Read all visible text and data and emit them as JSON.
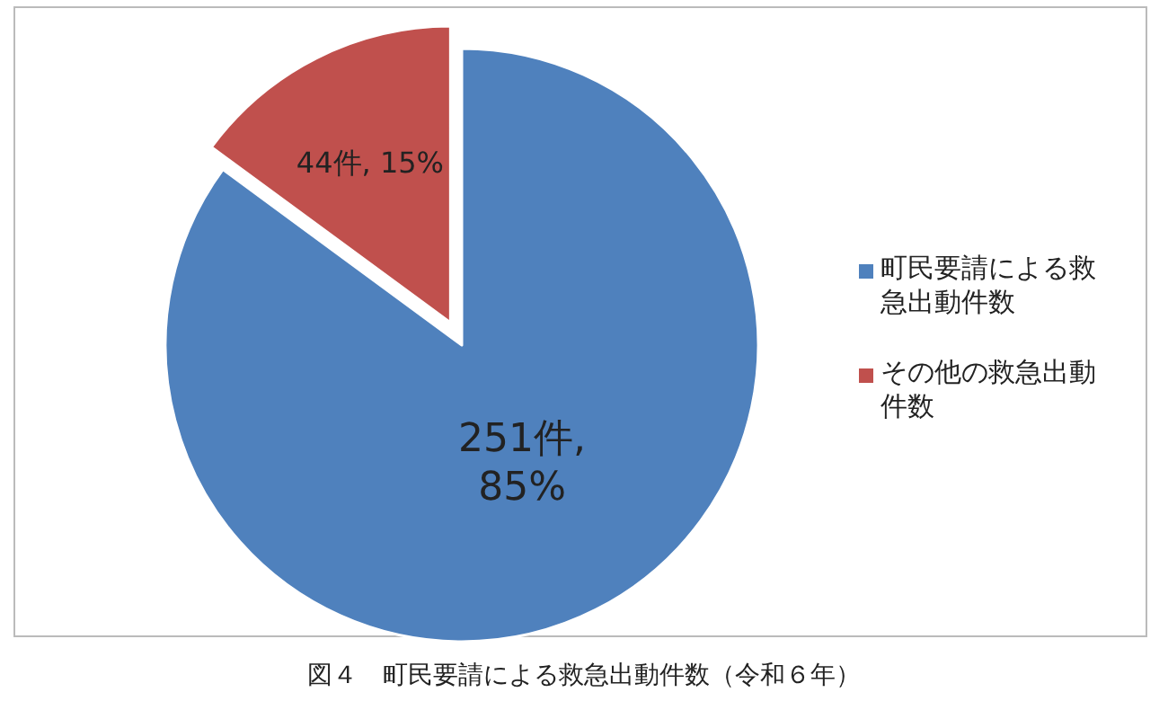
{
  "chart_data": {
    "type": "pie",
    "title": "図４　町民要請による救急出動件数（令和６年）",
    "categories": [
      "町民要請による救急出動件数",
      "その他の救急出動件数"
    ],
    "values": [
      251,
      44
    ],
    "value_labels": [
      "251件, 85%",
      "44件, 15%"
    ],
    "colors": [
      "#4f81bd",
      "#c0504d"
    ],
    "legend": "right"
  }
}
